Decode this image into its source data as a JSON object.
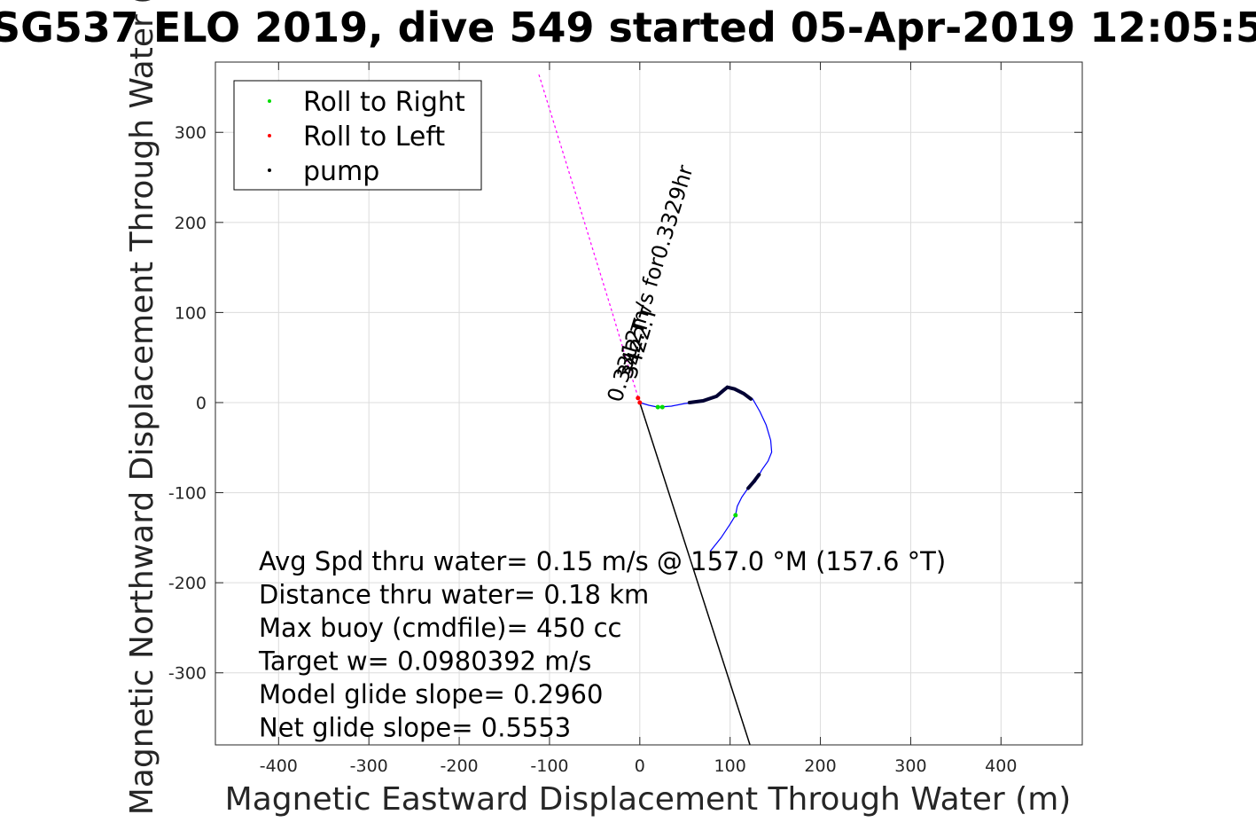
{
  "chart_data": {
    "type": "line",
    "title": "SG537 ELO 2019, dive 549 started 05-Apr-2019 12:05:5",
    "xlabel": "Magnetic Eastward Displacement Through Water (m)",
    "ylabel": "Magnetic Northward Displacement Through Water (",
    "xlim": [
      -470,
      490
    ],
    "ylim": [
      -380,
      378
    ],
    "xticks": [
      -400,
      -300,
      -200,
      -100,
      0,
      100,
      200,
      300,
      400
    ],
    "xtick_labels": [
      "-400",
      "-300",
      "-200",
      "-100",
      "0",
      "100",
      "200",
      "300",
      "400"
    ],
    "yticks": [
      300,
      200,
      100,
      0,
      -100,
      -200,
      -300
    ],
    "ytick_labels": [
      "300",
      "200",
      "100",
      "0",
      "-100",
      "-200",
      "-300"
    ],
    "grid": true,
    "legend": {
      "placement": "top-left",
      "entries": [
        {
          "label": "Roll to Right",
          "color": "#00dd00"
        },
        {
          "label": "Roll to Left",
          "color": "#ff0000"
        },
        {
          "label": "pump",
          "color": "#000000"
        }
      ]
    },
    "track": {
      "name": "dive track",
      "color": "#0000ff",
      "points": [
        [
          0,
          0
        ],
        [
          10,
          -3
        ],
        [
          20,
          -5
        ],
        [
          35,
          -4
        ],
        [
          50,
          -1
        ],
        [
          60,
          0
        ],
        [
          75,
          3
        ],
        [
          88,
          8
        ],
        [
          95,
          17
        ],
        [
          105,
          15
        ],
        [
          115,
          10
        ],
        [
          125,
          4
        ],
        [
          133,
          -10
        ],
        [
          140,
          -25
        ],
        [
          145,
          -42
        ],
        [
          146,
          -55
        ],
        [
          142,
          -65
        ],
        [
          135,
          -75
        ],
        [
          128,
          -88
        ],
        [
          122,
          -92
        ],
        [
          113,
          -105
        ],
        [
          108,
          -115
        ],
        [
          106,
          -125
        ],
        [
          100,
          -135
        ],
        [
          90,
          -150
        ],
        [
          78,
          -165
        ]
      ]
    },
    "pump_segments": [
      {
        "points": [
          [
            55,
            0
          ],
          [
            70,
            2
          ],
          [
            85,
            7
          ],
          [
            92,
            13
          ],
          [
            97,
            17
          ],
          [
            105,
            15
          ],
          [
            115,
            10
          ],
          [
            123,
            4
          ]
        ]
      },
      {
        "points": [
          [
            120,
            -95
          ],
          [
            126,
            -88
          ],
          [
            132,
            -80
          ]
        ]
      }
    ],
    "roll_right_points": [
      [
        20,
        -5
      ],
      [
        25,
        -5
      ],
      [
        106,
        -125
      ]
    ],
    "roll_left_points": [
      [
        0,
        0
      ],
      [
        -2,
        5
      ]
    ],
    "current_vector": {
      "color": "#000000",
      "points": [
        [
          0,
          0
        ],
        [
          122,
          -380
        ]
      ]
    },
    "heading_vector": {
      "color": "#ff00ff",
      "points": [
        [
          0,
          0
        ],
        [
          -14,
          45
        ],
        [
          -32,
          105
        ],
        [
          -52,
          170
        ],
        [
          -72,
          235
        ],
        [
          -92,
          300
        ],
        [
          -112,
          365
        ]
      ]
    },
    "vector_labels": [
      {
        "text": "0.3312m/s for0.3329hr",
        "rotation_deg": -73
      },
      {
        "text": "342.T",
        "rotation_deg": -73
      },
      {
        "text": "3422.T",
        "rotation_deg": -73
      }
    ],
    "annotations": [
      "Avg Spd thru water=  0.15 m/s @ 157.0 °M (157.6 °T)",
      "Distance thru water=  0.18 km",
      "Max buoy (cmdfile)= 450 cc",
      "Target w= 0.0980392 m/s",
      "Model glide slope= 0.2960",
      "Net glide slope= 0.5553"
    ]
  }
}
